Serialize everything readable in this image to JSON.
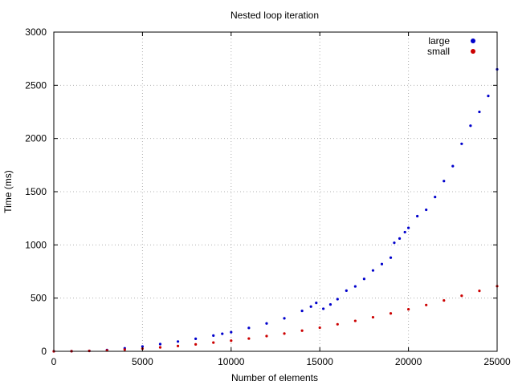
{
  "chart_data": {
    "type": "scatter",
    "title": "Nested loop iteration",
    "xlabel": "Number of elements",
    "ylabel": "Time (ms)",
    "xlim": [
      0,
      25000
    ],
    "ylim": [
      0,
      3000
    ],
    "x_ticks": [
      0,
      5000,
      10000,
      15000,
      20000,
      25000
    ],
    "y_ticks": [
      0,
      500,
      1000,
      1500,
      2000,
      2500,
      3000
    ],
    "grid": true,
    "legend_position": "top-right",
    "series": [
      {
        "name": "large",
        "color": "#0000cc",
        "x": [
          0,
          1000,
          2000,
          3000,
          4000,
          5000,
          6000,
          7000,
          8000,
          9000,
          9500,
          10000,
          11000,
          12000,
          13000,
          14000,
          14500,
          14800,
          15200,
          15600,
          16000,
          16500,
          17000,
          17500,
          18000,
          18500,
          19000,
          19200,
          19500,
          19800,
          20000,
          20500,
          21000,
          21500,
          22000,
          22500,
          23000,
          23500,
          24000,
          24500,
          25000
        ],
        "y": [
          0,
          1,
          4,
          12,
          28,
          45,
          68,
          92,
          118,
          148,
          165,
          180,
          220,
          262,
          310,
          380,
          420,
          455,
          400,
          440,
          490,
          570,
          610,
          680,
          760,
          820,
          880,
          1020,
          1060,
          1120,
          1160,
          1270,
          1330,
          1450,
          1600,
          1740,
          1950,
          2120,
          2250,
          2400,
          2650
        ]
      },
      {
        "name": "small",
        "color": "#cc0000",
        "x": [
          0,
          1000,
          2000,
          3000,
          4000,
          5000,
          6000,
          7000,
          8000,
          9000,
          10000,
          11000,
          12000,
          13000,
          14000,
          15000,
          16000,
          17000,
          18000,
          19000,
          20000,
          21000,
          22000,
          23000,
          24000,
          25000
        ],
        "y": [
          0,
          1,
          4,
          9,
          16,
          25,
          37,
          50,
          65,
          82,
          100,
          120,
          143,
          167,
          194,
          222,
          254,
          286,
          320,
          356,
          395,
          435,
          478,
          522,
          568,
          612
        ]
      }
    ]
  }
}
